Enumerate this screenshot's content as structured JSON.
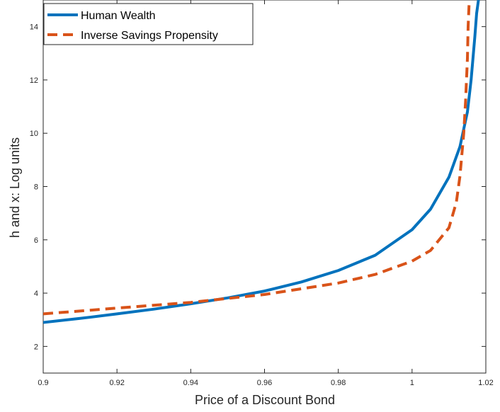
{
  "chart_data": {
    "type": "line",
    "xlabel": "Price of a Discount Bond",
    "ylabel": "h and x: Log units",
    "xlim": [
      0.9,
      1.02
    ],
    "ylim": [
      1,
      15
    ],
    "xticks": [
      0.9,
      0.92,
      0.94,
      0.96,
      0.98,
      1,
      1.02
    ],
    "xtick_labels": [
      "0.9",
      "0.92",
      "0.94",
      "0.96",
      "0.98",
      "1",
      "1.02"
    ],
    "yticks": [
      2,
      4,
      6,
      8,
      10,
      12,
      14
    ],
    "ytick_labels": [
      "2",
      "4",
      "6",
      "8",
      "10",
      "12",
      "14"
    ],
    "grid": false,
    "legend_position": "top-left",
    "series": [
      {
        "name": "Human Wealth",
        "style": "solid",
        "color": "#0072BD",
        "x": [
          0.9,
          0.91,
          0.92,
          0.93,
          0.94,
          0.95,
          0.96,
          0.97,
          0.98,
          0.99,
          1.0,
          1.005,
          1.01,
          1.013,
          1.015,
          1.016,
          1.017,
          1.0175,
          1.018
        ],
        "y": [
          2.9,
          3.05,
          3.22,
          3.4,
          3.6,
          3.82,
          4.08,
          4.42,
          4.85,
          5.42,
          6.38,
          7.15,
          8.35,
          9.5,
          10.8,
          12.0,
          13.6,
          14.5,
          15.0
        ]
      },
      {
        "name": "Inverse Savings Propensity",
        "style": "dashed",
        "color": "#D95319",
        "x": [
          0.9,
          0.92,
          0.94,
          0.95,
          0.96,
          0.98,
          0.99,
          1.0,
          1.005,
          1.01,
          1.012,
          1.013,
          1.014,
          1.0145,
          1.015,
          1.0152,
          1.0155
        ],
        "y": [
          3.22,
          3.44,
          3.65,
          3.8,
          3.95,
          4.38,
          4.7,
          5.2,
          5.6,
          6.45,
          7.4,
          8.4,
          10.0,
          11.2,
          12.8,
          14.0,
          15.0
        ]
      }
    ]
  }
}
